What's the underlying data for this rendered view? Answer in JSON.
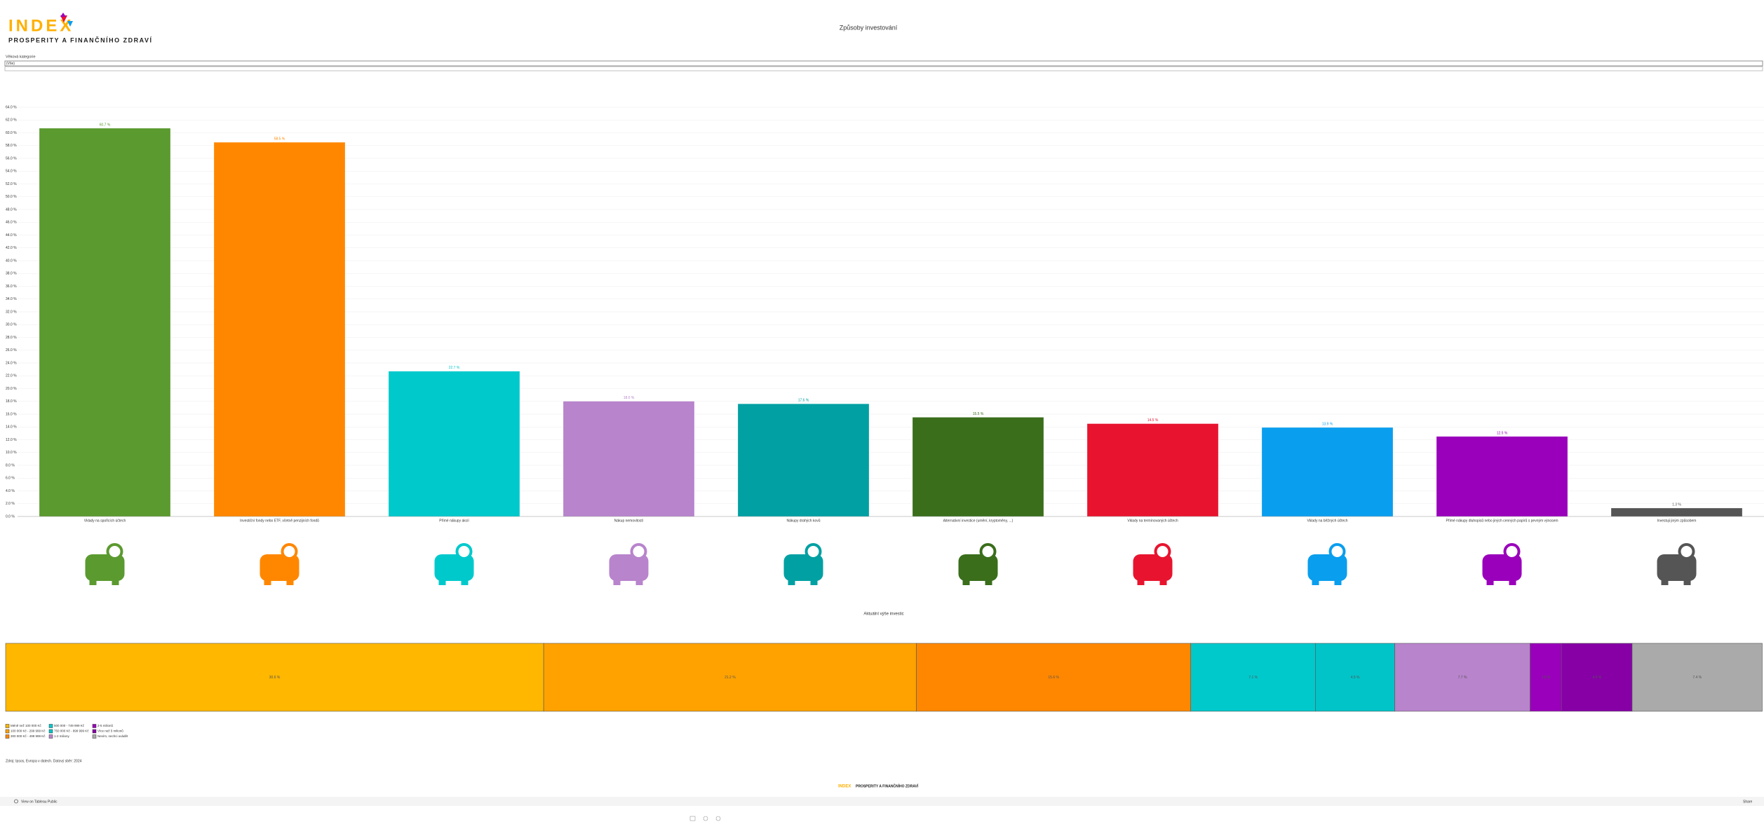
{
  "header": {
    "logo": "INDEX",
    "logo_subtitle": "PROSPERITY A FINANČNÍHO ZDRAVÍ"
  },
  "filter": {
    "label": "Věková kategorie",
    "value": "(Vše)"
  },
  "chart_data": [
    {
      "type": "bar",
      "title": "Způsoby investování",
      "categories": [
        "Vklady na spořicích účtech",
        "Investiční fondy nebo ETF, včetně penzijních fondů",
        "Přímé nákupy akcií",
        "Nákup nemovitostí",
        "Nákupy drahých kovů",
        "Alternativní investice (umění, kryptoměny, ...)",
        "Vklady na termínovaných účtech",
        "Vklady na běžných účtech",
        "Přímé nákupy dluhopisů nebo jiných cenných papírů s pevným výnosem",
        "Investuji jiným způsobem"
      ],
      "values": [
        60.7,
        58.5,
        22.7,
        18.0,
        17.6,
        15.5,
        14.5,
        13.9,
        12.5,
        1.3
      ],
      "value_labels": [
        "60.7 %",
        "58.5 %",
        "22.7 %",
        "18.0 %",
        "17.6 %",
        "15.5 %",
        "14.5 %",
        "13.9 %",
        "12.5 %",
        "1.3 %"
      ],
      "colors": [
        "#5b9a2f",
        "#ff8700",
        "#00c9cc",
        "#b884cc",
        "#00a0a3",
        "#3a6e1b",
        "#e8142f",
        "#0a9eee",
        "#9a00bb",
        "#555555"
      ],
      "ylim": [
        0,
        64
      ],
      "yticks": [
        {
          "value": 0,
          "label": "0.0 %"
        },
        {
          "value": 2,
          "label": "2.0 %"
        },
        {
          "value": 4,
          "label": "4.0 %"
        },
        {
          "value": 6,
          "label": "6.0 %"
        },
        {
          "value": 8,
          "label": "8.0 %"
        },
        {
          "value": 10,
          "label": "10.0 %"
        },
        {
          "value": 12,
          "label": "12.0 %"
        },
        {
          "value": 14,
          "label": "14.0 %"
        },
        {
          "value": 16,
          "label": "16.0 %"
        },
        {
          "value": 18,
          "label": "18.0 %"
        },
        {
          "value": 20,
          "label": "20.0 %"
        },
        {
          "value": 22,
          "label": "22.0 %"
        },
        {
          "value": 24,
          "label": "24.0 %"
        },
        {
          "value": 26,
          "label": "26.0 %"
        },
        {
          "value": 28,
          "label": "28.0 %"
        },
        {
          "value": 30,
          "label": "30.0 %"
        },
        {
          "value": 32,
          "label": "32.0 %"
        },
        {
          "value": 34,
          "label": "34.0 %"
        },
        {
          "value": 36,
          "label": "36.0 %"
        },
        {
          "value": 38,
          "label": "38.0 %"
        },
        {
          "value": 40,
          "label": "40.0 %"
        },
        {
          "value": 42,
          "label": "42.0 %"
        },
        {
          "value": 44,
          "label": "44.0 %"
        },
        {
          "value": 46,
          "label": "46.0 %"
        },
        {
          "value": 48,
          "label": "48.0 %"
        },
        {
          "value": 50,
          "label": "50.0 %"
        },
        {
          "value": 52,
          "label": "52.0 %"
        },
        {
          "value": 54,
          "label": "54.0 %"
        },
        {
          "value": 56,
          "label": "56.0 %"
        },
        {
          "value": 58,
          "label": "58.0 %"
        },
        {
          "value": 60,
          "label": "60.0 %"
        },
        {
          "value": 62,
          "label": "62.0 %"
        },
        {
          "value": 64,
          "label": "64.0 %"
        }
      ],
      "grid": true
    },
    {
      "type": "stacked_bar_100",
      "title": "Aktuální výše investic",
      "xlim": [
        0,
        100
      ],
      "series": [
        {
          "name": "Méně než 100 000 Kč",
          "color": "#ffb700",
          "values": [
            30.6
          ],
          "value_labels": [
            "30.6 %"
          ]
        },
        {
          "name": "100 000 Kč - 299 999 Kč",
          "color": "#ffa200",
          "values": [
            21.2
          ],
          "value_labels": [
            "21.2 %"
          ]
        },
        {
          "name": "300 000 Kč - 499 999 Kč",
          "color": "#ff8700",
          "values": [
            15.6
          ],
          "value_labels": [
            "15.6 %"
          ]
        },
        {
          "name": "500 000 - 749 999 Kč",
          "color": "#00c9cc",
          "values": [
            7.1
          ],
          "value_labels": [
            "7.1 %"
          ]
        },
        {
          "name": "750 000 Kč - 999 999 Kč",
          "color": "#00c4c8",
          "values": [
            4.5
          ],
          "value_labels": [
            "4.5 %"
          ]
        },
        {
          "name": "1-2 miliony",
          "color": "#b884cc",
          "values": [
            7.7
          ],
          "value_labels": [
            "7.7 %"
          ]
        },
        {
          "name": "2-5 milionů",
          "color": "#9a00bb",
          "values": [
            1.8
          ],
          "value_labels": [
            "1.8 %"
          ]
        },
        {
          "name": "Více než 5 milionů",
          "color": "#8600a6",
          "values": [
            4.0
          ],
          "value_labels": [
            "4.0 %"
          ]
        },
        {
          "name": "Nevím, nechci uvádět",
          "color": "#aaaaaa",
          "values": [
            7.4
          ],
          "value_labels": [
            "7.4 %"
          ]
        }
      ]
    }
  ],
  "footer": {
    "source": "Zdroj: Ipsos, Evropa v datech. Datový sběr: 2024",
    "tableau_link": "View on Tableau Public",
    "share": "Share"
  }
}
